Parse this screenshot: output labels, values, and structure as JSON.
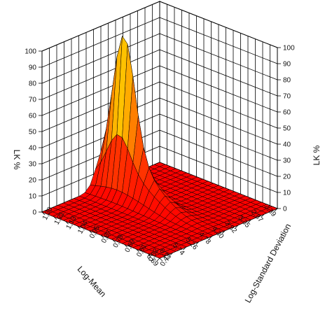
{
  "chart_data": {
    "type": "surface3d",
    "title": "",
    "zlabel_left": "LK %",
    "zlabel_right": "LK %",
    "xlabel": "Log-Mean",
    "ylabel": "Log-Standard Deviation",
    "z_ticks": [
      "0",
      "10",
      "20",
      "30",
      "40",
      "50",
      "60",
      "70",
      "80",
      "90",
      "100"
    ],
    "zlim": [
      0,
      100
    ],
    "x_ticks": [
      "2,39",
      "2,87",
      "3,35",
      "3,82",
      "4,30",
      "4,78",
      "5,26",
      "5,74",
      "6,21",
      "6,69"
    ],
    "y_ticks": [
      "1,30",
      "1,21",
      "1,13",
      "1,04",
      "0,95",
      "0,87",
      "0,78",
      "0,69",
      "0,61",
      "0,52",
      "0,43"
    ],
    "grid": true,
    "surface": {
      "peak_x": 4.54,
      "peak_y": 1.13,
      "peak_z": 100,
      "ridge_x": 4.54,
      "ridge_y": 1.04,
      "ridge_z": 25,
      "colormap": [
        "#ff0000",
        "#ff7a00",
        "#ffd500",
        "#ffff00"
      ]
    }
  }
}
